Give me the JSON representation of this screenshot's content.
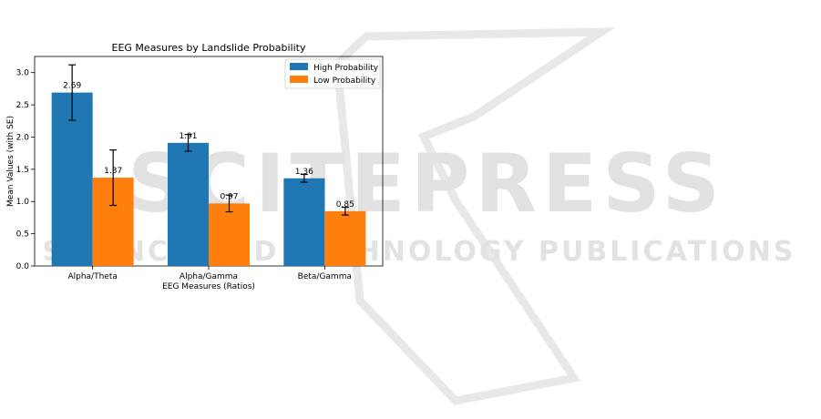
{
  "watermark": {
    "title": "SCITEPRESS",
    "subtitle": "SCIENCE AND TECHNOLOGY PUBLICATIONS",
    "color": "#dcdcdc"
  },
  "chart_data": {
    "type": "bar",
    "title": "EEG Measures by Landslide Probability",
    "xlabel": "EEG Measures (Ratios)",
    "ylabel": "Mean Values (with SE)",
    "categories": [
      "Alpha/Theta",
      "Alpha/Gamma",
      "Beta/Gamma"
    ],
    "ylim": [
      0,
      3.25
    ],
    "yticks": [
      "0.0",
      "0.5",
      "1.0",
      "1.5",
      "2.0",
      "2.5",
      "3.0"
    ],
    "grid": false,
    "legend_position": "top-right",
    "series": [
      {
        "name": "High Probability",
        "color": "#1f77b4",
        "values": [
          2.69,
          1.91,
          1.36
        ],
        "labels": [
          "2.69",
          "1.91",
          "1.36"
        ],
        "error": [
          0.43,
          0.13,
          0.06
        ]
      },
      {
        "name": "Low Probability",
        "color": "#ff7f0e",
        "values": [
          1.37,
          0.97,
          0.85
        ],
        "labels": [
          "1.37",
          "0.97",
          "0.85"
        ],
        "error": [
          0.43,
          0.13,
          0.06
        ]
      }
    ]
  }
}
